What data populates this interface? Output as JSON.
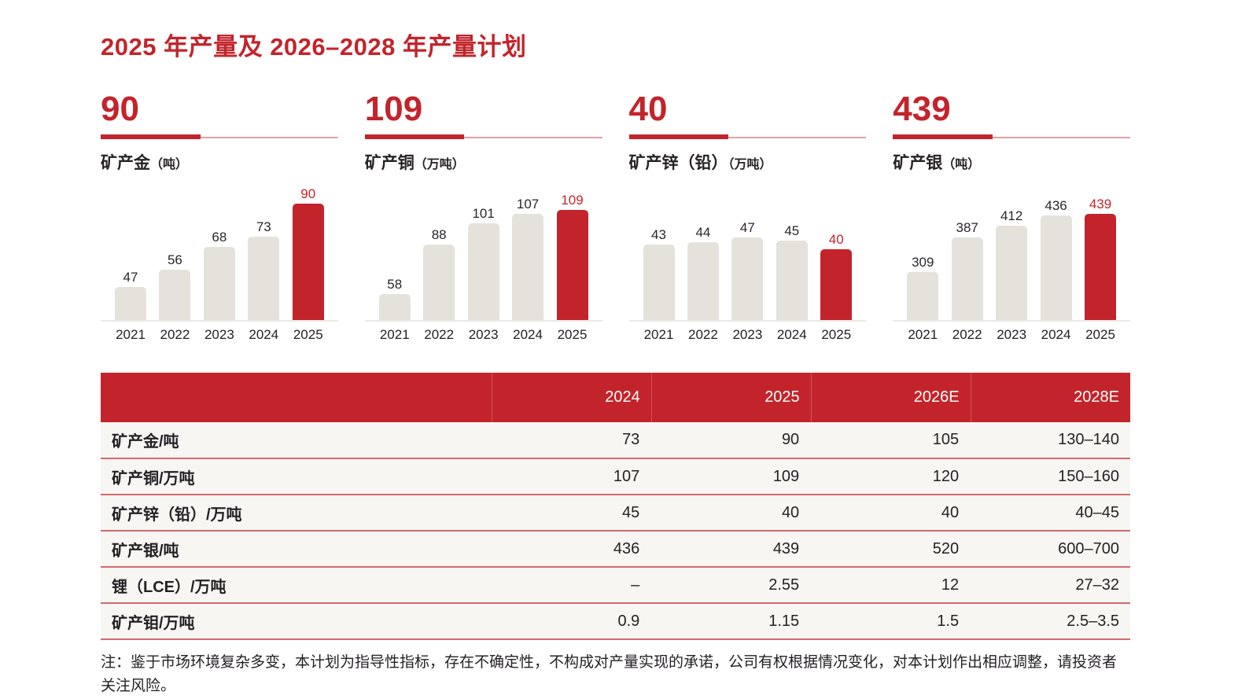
{
  "page": {
    "title": "2025 年产量及 2026–2028 年产量计划",
    "note": "注：鉴于市场环境复杂多变，本计划为指导性指标，存在不确定性，不构成对产量实现的承诺，公司有权根据情况变化，对本计划作出相应调整，请投资者关注风险。"
  },
  "colors": {
    "accent_red": "#c3242b",
    "bar_gray": "#e5e2dc",
    "row_bg": "#f7f6f3",
    "separator_red": "#d26a6e",
    "thin_rule_red": "#e6a0a3",
    "text_dark": "#252123"
  },
  "chart_data": [
    {
      "type": "bar",
      "headline": "90",
      "name": "矿产金",
      "unit": "（吨）",
      "categories": [
        "2021",
        "2022",
        "2023",
        "2024",
        "2025"
      ],
      "values": [
        47,
        56,
        68,
        73,
        90
      ],
      "highlight_index": 4,
      "highlight_color": "#c3242b",
      "bar_color": "#e5e2dc",
      "ylim": [
        30,
        91
      ],
      "legend": "off",
      "grid": "off"
    },
    {
      "type": "bar",
      "headline": "109",
      "name": "矿产铜",
      "unit": "（万吨）",
      "categories": [
        "2021",
        "2022",
        "2023",
        "2024",
        "2025"
      ],
      "values": [
        58,
        88,
        101,
        107,
        109
      ],
      "highlight_index": 4,
      "highlight_color": "#c3242b",
      "bar_color": "#e5e2dc",
      "ylim": [
        42,
        114
      ],
      "legend": "off",
      "grid": "off"
    },
    {
      "type": "bar",
      "headline": "40",
      "name": "矿产锌（铅）",
      "unit": "（万吨）",
      "categories": [
        "2021",
        "2022",
        "2023",
        "2024",
        "2025"
      ],
      "values": [
        43,
        44,
        47,
        45,
        40
      ],
      "highlight_index": 4,
      "highlight_color": "#c3242b",
      "bar_color": "#e5e2dc",
      "ylim": [
        0,
        67
      ],
      "legend": "off",
      "grid": "off"
    },
    {
      "type": "bar",
      "headline": "439",
      "name": "矿产银",
      "unit": "（吨）",
      "categories": [
        "2021",
        "2022",
        "2023",
        "2024",
        "2025"
      ],
      "values": [
        309,
        387,
        412,
        436,
        439
      ],
      "highlight_index": 4,
      "highlight_color": "#c3242b",
      "bar_color": "#e5e2dc",
      "ylim": [
        200,
        466
      ],
      "legend": "off",
      "grid": "off"
    }
  ],
  "table": {
    "columns": [
      "2024",
      "2025",
      "2026E",
      "2028E"
    ],
    "rows": [
      {
        "label": "矿产金/吨",
        "values": [
          "73",
          "90",
          "105",
          "130–140"
        ]
      },
      {
        "label": "矿产铜/万吨",
        "values": [
          "107",
          "109",
          "120",
          "150–160"
        ]
      },
      {
        "label": "矿产锌（铅）/万吨",
        "values": [
          "45",
          "40",
          "40",
          "40–45"
        ]
      },
      {
        "label": "矿产银/吨",
        "values": [
          "436",
          "439",
          "520",
          "600–700"
        ]
      },
      {
        "label": "锂（LCE）/万吨",
        "values": [
          "–",
          "2.55",
          "12",
          "27–32"
        ]
      },
      {
        "label": "矿产钼/万吨",
        "values": [
          "0.9",
          "1.15",
          "1.5",
          "2.5–3.5"
        ]
      }
    ]
  }
}
